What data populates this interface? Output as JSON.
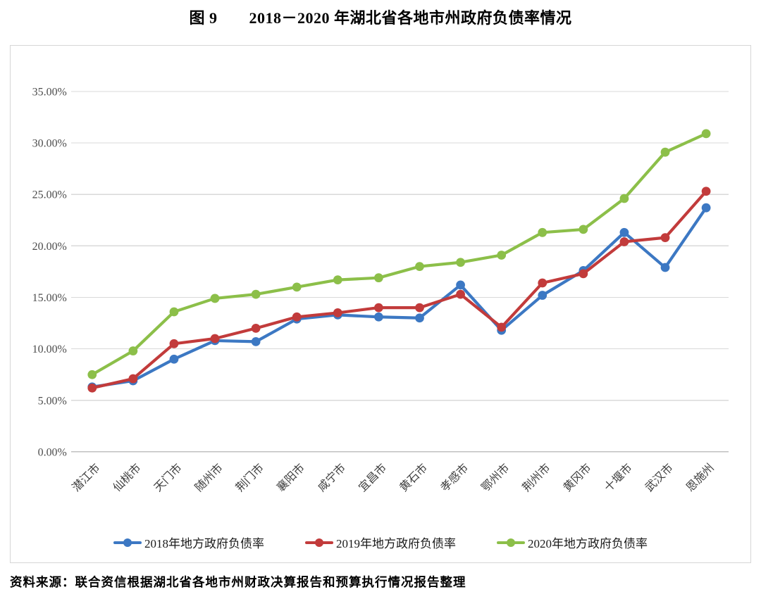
{
  "title": "图 9　　2018－2020 年湖北省各地市州政府负债率情况",
  "source": "资料来源：联合资信根据湖北省各地市州财政决算报告和预算执行情况报告整理",
  "chart_data": {
    "type": "line",
    "title": "图 9　　2018－2020 年湖北省各地市州政府负债率情况",
    "categories": [
      "潜江市",
      "仙桃市",
      "天门市",
      "随州市",
      "荆门市",
      "襄阳市",
      "咸宁市",
      "宜昌市",
      "黄石市",
      "孝感市",
      "鄂州市",
      "荆州市",
      "黄冈市",
      "十堰市",
      "武汉市",
      "恩施州"
    ],
    "series": [
      {
        "name": "2018年地方政府负债率",
        "color": "#3C78C3",
        "values": [
          6.3,
          6.9,
          9.0,
          10.8,
          10.7,
          12.9,
          13.3,
          13.1,
          13.0,
          16.2,
          11.8,
          15.2,
          17.6,
          21.3,
          17.9,
          23.7
        ]
      },
      {
        "name": "2019年地方政府负债率",
        "color": "#C23B3B",
        "values": [
          6.2,
          7.1,
          10.5,
          11.0,
          12.0,
          13.1,
          13.5,
          14.0,
          14.0,
          15.3,
          12.1,
          16.4,
          17.3,
          20.4,
          20.8,
          25.3
        ]
      },
      {
        "name": "2020年地方政府负债率",
        "color": "#8CBF49",
        "values": [
          7.5,
          9.8,
          13.6,
          14.9,
          15.3,
          16.0,
          16.7,
          16.9,
          18.0,
          18.4,
          19.1,
          21.3,
          21.6,
          24.6,
          29.1,
          30.9
        ]
      }
    ],
    "ylabel": "",
    "xlabel": "",
    "ylim": [
      0,
      35
    ],
    "ytick_step": 5,
    "ytick_labels": [
      "0.00%",
      "5.00%",
      "10.00%",
      "15.00%",
      "20.00%",
      "25.00%",
      "30.00%",
      "35.00%"
    ],
    "grid": "horizontal",
    "legend_position": "bottom",
    "colors": {
      "grid": "#d9d9d9",
      "axis": "#c0c0c0",
      "tick_text": "#4d4d4d",
      "category_text": "#3f3f3f"
    }
  }
}
